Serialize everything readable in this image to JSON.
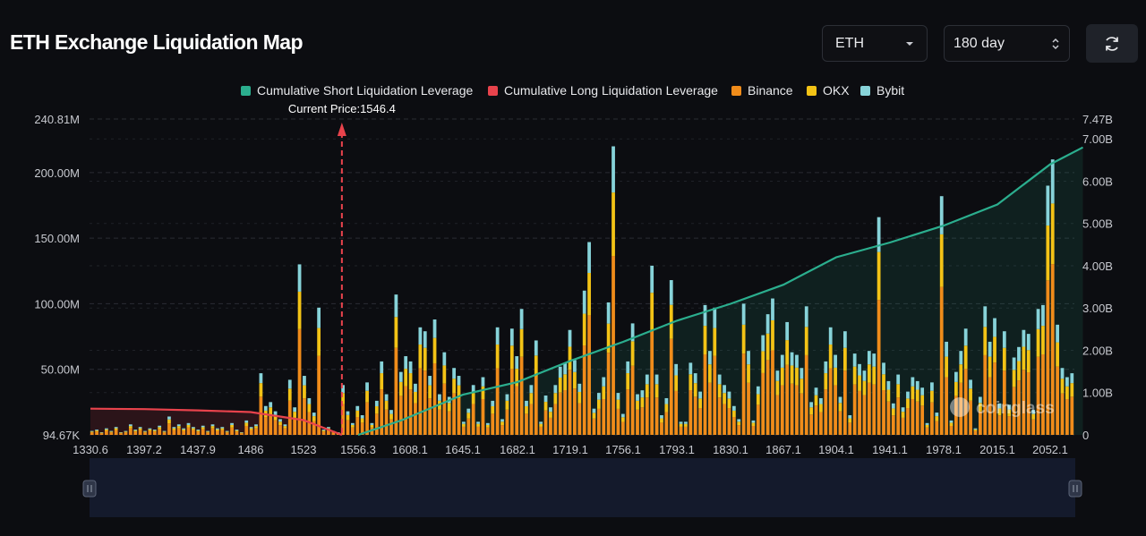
{
  "header": {
    "title": "ETH Exchange Liquidation Map"
  },
  "controls": {
    "symbol": {
      "value": "ETH",
      "icon": "caret-down-icon"
    },
    "period": {
      "value": "180 day",
      "icon": "stepper-icon"
    },
    "refresh": {
      "icon": "refresh-icon"
    }
  },
  "colors": {
    "background": "#0c0d11",
    "short_cum": "#2bae8e",
    "long_cum": "#e8434c",
    "binance": "#f08c1a",
    "okx": "#f3c316",
    "bybit": "#87d3d9"
  },
  "chart_data": {
    "type": "bar",
    "title": "",
    "legend": {
      "position": "top",
      "items": [
        {
          "name": "Cumulative Short Liquidation Leverage",
          "color": "#2bae8e"
        },
        {
          "name": "Cumulative Long Liquidation Leverage",
          "color": "#e8434c"
        },
        {
          "name": "Binance",
          "color": "#f08c1a"
        },
        {
          "name": "OKX",
          "color": "#f3c316"
        },
        {
          "name": "Bybit",
          "color": "#87d3d9"
        }
      ]
    },
    "current_price": {
      "label": "Current Price:1546.4",
      "value": 1546.4
    },
    "x_ticks": [
      "1330.6",
      "1397.2",
      "1437.9",
      "1486",
      "1523",
      "1556.3",
      "1608.1",
      "1645.1",
      "1682.1",
      "1719.1",
      "1756.1",
      "1793.1",
      "1830.1",
      "1867.1",
      "1904.1",
      "1941.1",
      "1978.1",
      "2015.1",
      "2052.1"
    ],
    "y_left": {
      "ticks": [
        "94.67K",
        "50.00M",
        "100.00M",
        "150.00M",
        "200.00M",
        "240.81M"
      ],
      "range": [
        0,
        240.81
      ],
      "unit": "M"
    },
    "y_right": {
      "ticks": [
        "0",
        "1.00B",
        "2.00B",
        "3.00B",
        "4.00B",
        "5.00B",
        "6.00B",
        "7.00B",
        "7.47B"
      ],
      "range": [
        0,
        7.47
      ],
      "unit": "B"
    },
    "bars_total_M": [
      3,
      4,
      2,
      5,
      3,
      6,
      2,
      3,
      8,
      4,
      6,
      3,
      5,
      4,
      7,
      3,
      14,
      6,
      8,
      5,
      9,
      6,
      4,
      7,
      3,
      8,
      5,
      6,
      3,
      9,
      4,
      2,
      11,
      6,
      8,
      47,
      22,
      25,
      18,
      12,
      8,
      42,
      21,
      130,
      45,
      28,
      17,
      97,
      4,
      6,
      3,
      2,
      38,
      18,
      9,
      22,
      15,
      40,
      9,
      26,
      56,
      31,
      19,
      107,
      48,
      60,
      56,
      39,
      82,
      79,
      45,
      88,
      31,
      63,
      29,
      51,
      45,
      10,
      20,
      38,
      10,
      44,
      9,
      26,
      82,
      12,
      31,
      81,
      60,
      96,
      26,
      38,
      72,
      10,
      30,
      21,
      38,
      52,
      55,
      80,
      57,
      39,
      110,
      147,
      20,
      32,
      44,
      101,
      220,
      32,
      16,
      56,
      85,
      31,
      34,
      46,
      129,
      46,
      15,
      28,
      118,
      54,
      10,
      10,
      55,
      47,
      33,
      99,
      64,
      97,
      46,
      38,
      33,
      22,
      12,
      100,
      64,
      11,
      37,
      76,
      92,
      104,
      49,
      61,
      86,
      63,
      61,
      51,
      98,
      25,
      36,
      28,
      56,
      82,
      61,
      29,
      79,
      15,
      62,
      54,
      49,
      64,
      62,
      166,
      55,
      41,
      24,
      46,
      21,
      33,
      44,
      41,
      36,
      9,
      40,
      17,
      182,
      71,
      11,
      48,
      64,
      81,
      42,
      5,
      29,
      98,
      71,
      89,
      24,
      79,
      23,
      59,
      67,
      80,
      77,
      19,
      96,
      99,
      190,
      210,
      84,
      51,
      44,
      47
    ],
    "bars_split_pct": {
      "binance": 0.62,
      "okx": 0.22,
      "bybit": 0.16
    },
    "short_cum_B": [
      {
        "price": 1556.3,
        "value": 0.0
      },
      {
        "price": 1600,
        "value": 0.35
      },
      {
        "price": 1645.1,
        "value": 0.95
      },
      {
        "price": 1682.1,
        "value": 1.25
      },
      {
        "price": 1719.1,
        "value": 1.75
      },
      {
        "price": 1756.1,
        "value": 2.2
      },
      {
        "price": 1793.1,
        "value": 2.7
      },
      {
        "price": 1830.1,
        "value": 3.1
      },
      {
        "price": 1867.1,
        "value": 3.55
      },
      {
        "price": 1904.1,
        "value": 4.2
      },
      {
        "price": 1941.1,
        "value": 4.55
      },
      {
        "price": 1978.1,
        "value": 4.95
      },
      {
        "price": 2015.1,
        "value": 5.45
      },
      {
        "price": 2052.1,
        "value": 6.4
      },
      {
        "price": 2075,
        "value": 6.8
      }
    ],
    "long_cum_B": [
      {
        "price": 1330.6,
        "value": 0.62
      },
      {
        "price": 1397.2,
        "value": 0.61
      },
      {
        "price": 1437.9,
        "value": 0.58
      },
      {
        "price": 1486,
        "value": 0.54
      },
      {
        "price": 1523,
        "value": 0.35
      },
      {
        "price": 1546.4,
        "value": 0.0
      }
    ],
    "watermark": "coinglass",
    "grid": true
  }
}
